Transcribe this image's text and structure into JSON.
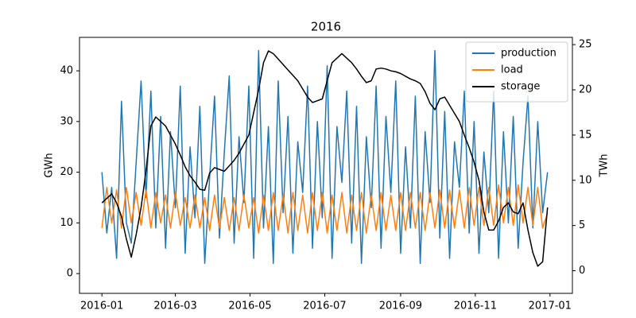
{
  "chart_data": {
    "type": "line",
    "title": "2016",
    "ylabel": "GWh",
    "y2label": "TWh",
    "xlim": [
      -18.3,
      384.3
    ],
    "xticks": [
      {
        "value": 0,
        "label": "2016-01"
      },
      {
        "value": 60,
        "label": "2016-03"
      },
      {
        "value": 121,
        "label": "2016-05"
      },
      {
        "value": 182,
        "label": "2016-07"
      },
      {
        "value": 244,
        "label": "2016-09"
      },
      {
        "value": 305,
        "label": "2016-11"
      },
      {
        "value": 366,
        "label": "2017-01"
      }
    ],
    "ylim": [
      -3.9,
      46.6
    ],
    "yticks": [
      0,
      10,
      20,
      30,
      40
    ],
    "y2lim": [
      -2.5,
      25.8
    ],
    "y2ticks": [
      0,
      5,
      10,
      15,
      20,
      25
    ],
    "legend": "upper right",
    "x": [
      0,
      4,
      8,
      12,
      16,
      20,
      24,
      28,
      32,
      36,
      40,
      44,
      48,
      52,
      56,
      60,
      64,
      68,
      72,
      76,
      80,
      84,
      88,
      92,
      96,
      100,
      104,
      108,
      112,
      116,
      120,
      124,
      128,
      132,
      136,
      140,
      144,
      148,
      152,
      156,
      160,
      164,
      168,
      172,
      176,
      180,
      184,
      188,
      192,
      196,
      200,
      204,
      208,
      212,
      216,
      220,
      224,
      228,
      232,
      236,
      240,
      244,
      248,
      252,
      256,
      260,
      264,
      268,
      272,
      276,
      280,
      284,
      288,
      292,
      296,
      300,
      304,
      308,
      312,
      316,
      320,
      324,
      328,
      332,
      336,
      340,
      344,
      348,
      352,
      356,
      360,
      364
    ],
    "series": [
      {
        "name": "production",
        "color": "#1f77b4",
        "values": [
          20,
          8,
          17,
          3,
          34,
          10,
          6,
          22,
          38,
          15,
          36,
          9,
          31,
          5,
          28,
          13,
          37,
          4,
          25,
          11,
          33,
          2,
          19,
          35,
          7,
          24,
          39,
          6,
          27,
          14,
          37,
          3,
          44,
          9,
          29,
          2,
          38,
          12,
          31,
          4,
          26,
          16,
          37,
          5,
          30,
          11,
          41,
          3,
          29,
          18,
          36,
          6,
          33,
          2,
          27,
          13,
          37,
          5,
          31,
          16,
          38,
          4,
          25,
          9,
          35,
          2,
          28,
          14,
          44,
          7,
          32,
          3,
          26,
          17,
          36,
          8,
          30,
          4,
          24,
          12,
          36,
          3,
          28,
          10,
          31,
          5,
          22,
          35,
          9,
          30,
          12,
          20
        ]
      },
      {
        "name": "load",
        "color": "#ff7f0e",
        "values": [
          9,
          17,
          10,
          16.5,
          9,
          17,
          10,
          16,
          9.5,
          16.5,
          9,
          16,
          10,
          15.5,
          9,
          16,
          9.5,
          15,
          9,
          15.5,
          9,
          15,
          8.5,
          15.5,
          9,
          15,
          8.5,
          15,
          8.5,
          15.5,
          9,
          15,
          8,
          15.5,
          8.5,
          16,
          8.5,
          15.5,
          8,
          16,
          8.5,
          15.5,
          8,
          16,
          8.5,
          16,
          8,
          15.5,
          8.5,
          16,
          8,
          15.5,
          8.5,
          16,
          8,
          15.5,
          8.5,
          16,
          8.5,
          15.5,
          8.5,
          16,
          8.5,
          16,
          9,
          16,
          8.5,
          16,
          9,
          16.5,
          9,
          16.5,
          9,
          16.5,
          9,
          17,
          9.5,
          17,
          9.5,
          17,
          9.5,
          17.5,
          10,
          17,
          9.5,
          17.5,
          10,
          17,
          9.5,
          17,
          9,
          12
        ]
      },
      {
        "name": "storage",
        "color": "#000000",
        "axis": "y2",
        "values": [
          7.5,
          8,
          8.5,
          7.5,
          6,
          3.5,
          1.5,
          4,
          7,
          11,
          16,
          17,
          16.5,
          16,
          15,
          14,
          12.8,
          11.5,
          10.5,
          9.8,
          9,
          8.9,
          10.8,
          11.4,
          11.2,
          11,
          11.6,
          12.2,
          13,
          14,
          15,
          17.5,
          20,
          23,
          24.3,
          24,
          23.4,
          22.8,
          22.2,
          21.6,
          21,
          20.1,
          19.2,
          18.6,
          18.8,
          19,
          21,
          23,
          23.5,
          24,
          23.5,
          23,
          22.3,
          21.5,
          20.8,
          21,
          22.3,
          22.4,
          22.3,
          22.1,
          22,
          21.8,
          21.5,
          21.2,
          21,
          20.7,
          19.8,
          18.5,
          17.8,
          19,
          19.2,
          18.3,
          17.4,
          16.5,
          15,
          13.6,
          12,
          10,
          6.5,
          4.5,
          4.5,
          5.5,
          7,
          7.5,
          6.5,
          6.3,
          7.5,
          4.5,
          2,
          0.5,
          1,
          7
        ]
      }
    ]
  }
}
